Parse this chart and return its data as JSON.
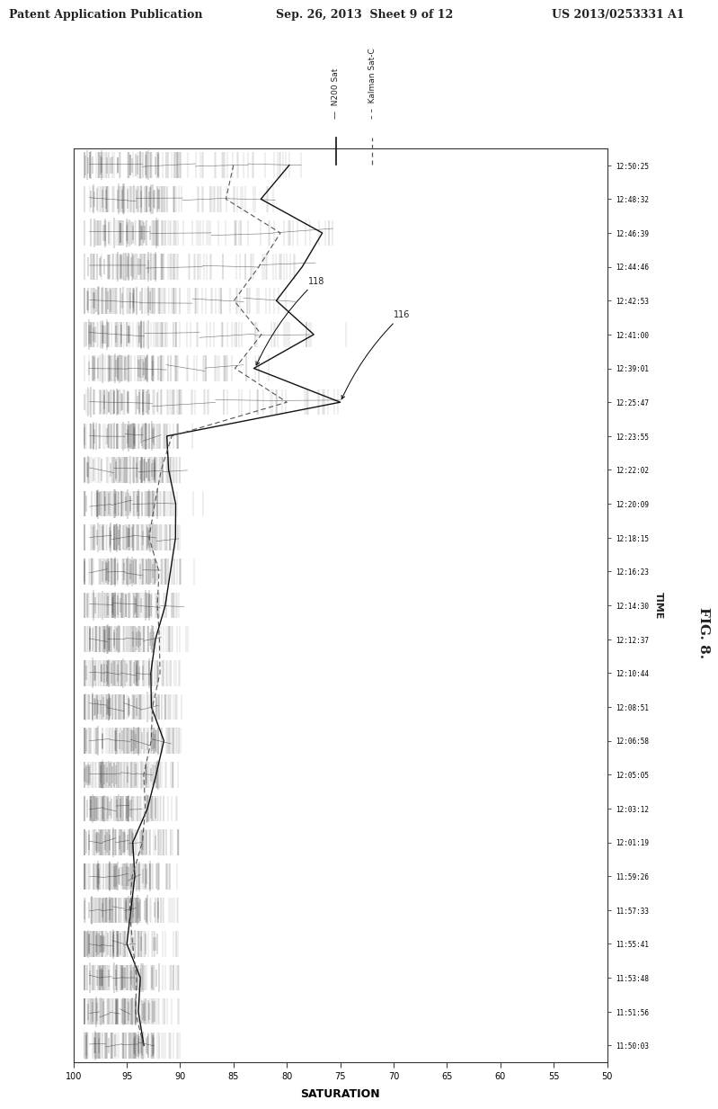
{
  "header_left": "Patent Application Publication",
  "header_center": "Sep. 26, 2013  Sheet 9 of 12",
  "header_right": "US 2013/0253331 A1",
  "figure_label": "FIG. 8.",
  "legend_line1": "N200 Sat",
  "legend_line2": "Kalman Sat-C",
  "annotation1": "116",
  "annotation2": "118",
  "xlabel": "SATURATION",
  "ylabel": "TIME",
  "x_min": 50,
  "x_max": 100,
  "x_ticks": [
    100,
    95,
    90,
    85,
    80,
    75,
    70,
    65,
    60,
    55,
    50
  ],
  "x_tick_labels": [
    "100",
    "95",
    "90",
    "85",
    "80",
    "75",
    "70",
    "65",
    "60",
    "55",
    "50"
  ],
  "time_labels": [
    "11:50:03",
    "11:51:56",
    "11:53:48",
    "11:55:41",
    "11:57:33",
    "11:59:26",
    "12:01:19",
    "12:03:12",
    "12:05:05",
    "12:06:58",
    "12:08:51",
    "12:10:44",
    "12:12:37",
    "12:14:30",
    "12:16:23",
    "12:18:15",
    "12:20:09",
    "12:22:02",
    "12:23:55",
    "12:25:47",
    "12:39:01",
    "12:41:00",
    "12:42:53",
    "12:44:46",
    "12:46:39",
    "12:48:32",
    "12:50:25"
  ],
  "background_color": "#ffffff",
  "text_color": "#222222",
  "signal_color": "#333333",
  "smooth_line_color": "#111111",
  "kalman_line_color": "#555555"
}
